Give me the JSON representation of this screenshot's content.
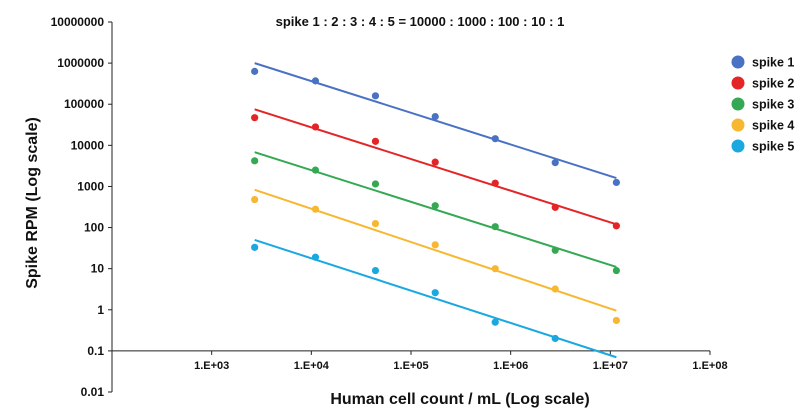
{
  "chart_data": {
    "type": "scatter",
    "title": "spike 1 : 2 : 3 : 4 : 5 = 10000 : 1000 : 100 : 10 : 1",
    "xlabel": "Human cell count / mL (Log scale)",
    "ylabel": "Spike RPM (Log scale)",
    "x_scale": "log",
    "y_scale": "log",
    "xlim": [
      100,
      100000000
    ],
    "ylim": [
      0.01,
      10000000
    ],
    "x_tick_values": [
      1000,
      10000,
      100000,
      1000000,
      10000000,
      100000000
    ],
    "x_tick_labels": [
      "1.E+03",
      "1.E+04",
      "1.E+05",
      "1.E+06",
      "1.E+07",
      "1.E+08"
    ],
    "y_tick_values": [
      0.01,
      0.1,
      1,
      10,
      100,
      1000,
      10000,
      100000,
      1000000,
      10000000
    ],
    "y_tick_labels": [
      "0.01",
      "0.1",
      "1",
      "10",
      "100",
      "1000",
      "10000",
      "100000",
      "1000000",
      "10000000"
    ],
    "x_axis_crosses_y_at": 0.1,
    "grid": false,
    "legend_position": "right",
    "x": [
      2700,
      11000,
      44000,
      175000,
      700000,
      2800000,
      11500000
    ],
    "series": [
      {
        "name": "spike 1",
        "color": "#4a72c4",
        "values": [
          630000,
          370000,
          160000,
          50000,
          14500,
          3800,
          1250
        ],
        "fit_line": {
          "x_start": 2700,
          "y_start": 1000000,
          "x_end": 11500000,
          "y_end": 1600
        }
      },
      {
        "name": "spike 2",
        "color": "#e42527",
        "values": [
          47000,
          28000,
          12500,
          3900,
          1200,
          310,
          110
        ],
        "fit_line": {
          "x_start": 2700,
          "y_start": 75000,
          "x_end": 11500000,
          "y_end": 120
        }
      },
      {
        "name": "spike 3",
        "color": "#34a853",
        "values": [
          4200,
          2500,
          1150,
          340,
          105,
          28,
          9
        ],
        "fit_line": {
          "x_start": 2700,
          "y_start": 6800,
          "x_end": 11500000,
          "y_end": 11
        }
      },
      {
        "name": "spike 4",
        "color": "#f7b731",
        "values": [
          480,
          280,
          125,
          38,
          10,
          3.2,
          0.55
        ],
        "fit_line": {
          "x_start": 2700,
          "y_start": 830,
          "x_end": 11500000,
          "y_end": 0.95
        }
      },
      {
        "name": "spike 5",
        "color": "#1ba8e0",
        "values": [
          33,
          19,
          9,
          2.6,
          0.5,
          0.2,
          null
        ],
        "fit_line": {
          "x_start": 2700,
          "y_start": 50,
          "x_end": 11500000,
          "y_end": 0.07
        }
      }
    ]
  }
}
